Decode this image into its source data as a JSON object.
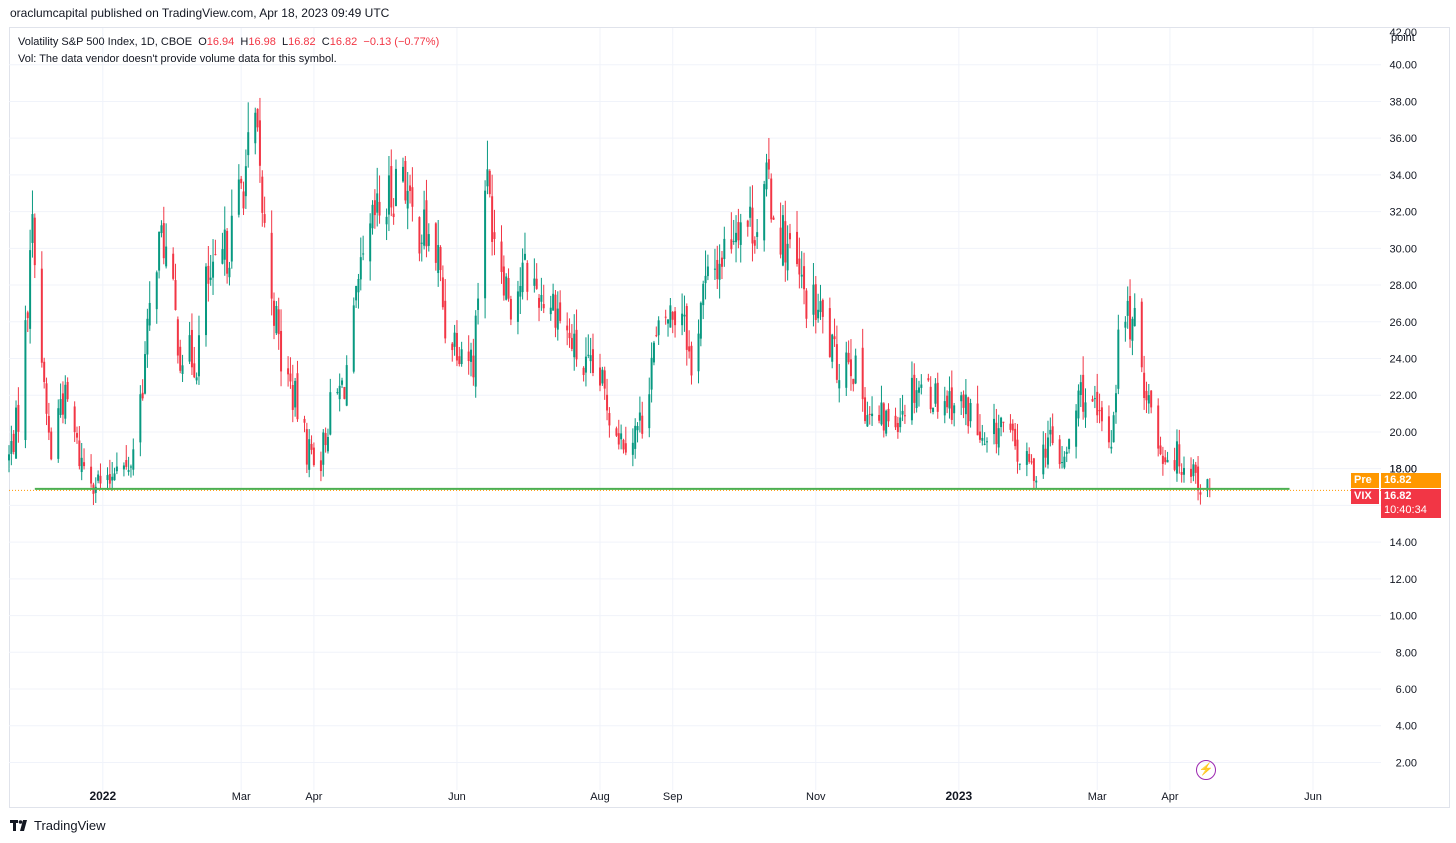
{
  "header": {
    "published": "oraclumcapital published on TradingView.com, Apr 18, 2023 09:49 UTC"
  },
  "legend": {
    "symbol": "Volatility S&P 500 Index, 1D, CBOE",
    "o_label": "O",
    "o_val": "16.94",
    "h_label": "H",
    "h_val": "16.98",
    "l_label": "L",
    "l_val": "16.82",
    "c_label": "C",
    "c_val": "16.82",
    "change": "−0.13 (−0.77%)",
    "vol_note": "Vol: The data vendor doesn't provide volume data for this symbol."
  },
  "price_scale": {
    "unit": "point"
  },
  "tags": {
    "pre_label": "Pre",
    "pre_value": "16.82",
    "vix_label": "VIX",
    "vix_value": "16.82",
    "countdown": "10:40:34",
    "partial_tick": "18.00"
  },
  "footer": {
    "brand": "TradingView"
  },
  "colors": {
    "up": "#089981",
    "down": "#f23645",
    "support": "#4caf50",
    "pre": "#ff9800",
    "last": "#f23645"
  },
  "icons": {
    "bolt": "lightning-bolt-icon",
    "logo": "tradingview-logo-icon"
  },
  "chart_data": {
    "type": "candlestick",
    "title": "Volatility S&P 500 Index, 1D, CBOE",
    "ylabel": "point",
    "ylim": [
      0.5,
      42
    ],
    "yticks": [
      2,
      4,
      6,
      8,
      10,
      12,
      14,
      16,
      18,
      20,
      22,
      24,
      26,
      28,
      30,
      32,
      34,
      36,
      38,
      40
    ],
    "x_range": [
      "2021-11-22",
      "2023-06-30"
    ],
    "x_tick_labels": [
      {
        "date": "2022-01-01",
        "label": "2022",
        "bold": true
      },
      {
        "date": "2022-03-01",
        "label": "Mar"
      },
      {
        "date": "2022-04-01",
        "label": "Apr"
      },
      {
        "date": "2022-06-01",
        "label": "Jun"
      },
      {
        "date": "2022-08-01",
        "label": "Aug"
      },
      {
        "date": "2022-09-01",
        "label": "Sep"
      },
      {
        "date": "2022-11-01",
        "label": "Nov"
      },
      {
        "date": "2023-01-01",
        "label": "2023",
        "bold": true
      },
      {
        "date": "2023-03-01",
        "label": "Mar"
      },
      {
        "date": "2023-04-01",
        "label": "Apr"
      },
      {
        "date": "2023-06-01",
        "label": "Jun"
      }
    ],
    "grid": true,
    "last_price": 16.82,
    "support_line": {
      "value": 16.9,
      "from": "2021-12-03",
      "to": "2023-05-22"
    },
    "close_path": [
      [
        "2021-11-22",
        18.6
      ],
      [
        "2021-11-26",
        20.9
      ],
      [
        "2021-11-30",
        27.0
      ],
      [
        "2021-12-01",
        31.0
      ],
      [
        "2021-12-03",
        30.5
      ],
      [
        "2021-12-07",
        21.9
      ],
      [
        "2021-12-10",
        18.7
      ],
      [
        "2021-12-14",
        21.9
      ],
      [
        "2021-12-17",
        21.5
      ],
      [
        "2021-12-22",
        18.6
      ],
      [
        "2021-12-28",
        17.5
      ],
      [
        "2022-01-03",
        16.9
      ],
      [
        "2022-01-07",
        18.8
      ],
      [
        "2022-01-12",
        17.6
      ],
      [
        "2022-01-18",
        22.8
      ],
      [
        "2022-01-24",
        29.9
      ],
      [
        "2022-01-27",
        30.5
      ],
      [
        "2022-02-03",
        24.4
      ],
      [
        "2022-02-10",
        23.9
      ],
      [
        "2022-02-14",
        28.0
      ],
      [
        "2022-02-17",
        28.1
      ],
      [
        "2022-02-24",
        30.3
      ],
      [
        "2022-03-01",
        33.3
      ],
      [
        "2022-03-07",
        36.5
      ],
      [
        "2022-03-11",
        30.8
      ],
      [
        "2022-03-18",
        23.9
      ],
      [
        "2022-03-24",
        21.7
      ],
      [
        "2022-03-29",
        19.1
      ],
      [
        "2022-04-04",
        18.6
      ],
      [
        "2022-04-08",
        21.2
      ],
      [
        "2022-04-14",
        22.7
      ],
      [
        "2022-04-21",
        28.2
      ],
      [
        "2022-04-27",
        31.6
      ],
      [
        "2022-05-02",
        32.3
      ],
      [
        "2022-05-09",
        34.8
      ],
      [
        "2022-05-12",
        31.8
      ],
      [
        "2022-05-18",
        30.9
      ],
      [
        "2022-05-24",
        29.4
      ],
      [
        "2022-05-27",
        25.7
      ],
      [
        "2022-06-03",
        24.8
      ],
      [
        "2022-06-08",
        23.9
      ],
      [
        "2022-06-10",
        27.8
      ],
      [
        "2022-06-13",
        34.0
      ],
      [
        "2022-06-17",
        31.1
      ],
      [
        "2022-06-24",
        27.2
      ],
      [
        "2022-06-30",
        28.7
      ],
      [
        "2022-07-06",
        27.6
      ],
      [
        "2022-07-13",
        27.0
      ],
      [
        "2022-07-18",
        25.3
      ],
      [
        "2022-07-25",
        23.4
      ],
      [
        "2022-08-01",
        22.8
      ],
      [
        "2022-08-05",
        21.2
      ],
      [
        "2022-08-10",
        19.7
      ],
      [
        "2022-08-15",
        19.9
      ],
      [
        "2022-08-19",
        20.6
      ],
      [
        "2022-08-23",
        24.0
      ],
      [
        "2022-08-29",
        26.2
      ],
      [
        "2022-09-06",
        26.9
      ],
      [
        "2022-09-09",
        22.8
      ],
      [
        "2022-09-13",
        27.3
      ],
      [
        "2022-09-23",
        29.9
      ],
      [
        "2022-09-29",
        31.8
      ],
      [
        "2022-10-03",
        31.4
      ],
      [
        "2022-10-07",
        31.4
      ],
      [
        "2022-10-12",
        33.6
      ],
      [
        "2022-10-14",
        32.0
      ],
      [
        "2022-10-21",
        29.7
      ],
      [
        "2022-10-27",
        27.4
      ],
      [
        "2022-11-03",
        26.3
      ],
      [
        "2022-11-10",
        23.5
      ],
      [
        "2022-11-15",
        24.5
      ],
      [
        "2022-11-18",
        23.1
      ],
      [
        "2022-11-25",
        20.5
      ],
      [
        "2022-11-30",
        20.6
      ],
      [
        "2022-12-05",
        20.8
      ],
      [
        "2022-12-13",
        22.6
      ],
      [
        "2022-12-16",
        22.6
      ],
      [
        "2022-12-22",
        22.0
      ],
      [
        "2022-12-30",
        21.7
      ],
      [
        "2023-01-06",
        21.1
      ],
      [
        "2023-01-12",
        18.8
      ],
      [
        "2023-01-19",
        20.5
      ],
      [
        "2023-01-27",
        18.5
      ],
      [
        "2023-02-02",
        17.9
      ],
      [
        "2023-02-08",
        19.6
      ],
      [
        "2023-02-15",
        18.2
      ],
      [
        "2023-02-22",
        22.3
      ],
      [
        "2023-03-01",
        20.6
      ],
      [
        "2023-03-07",
        19.6
      ],
      [
        "2023-03-10",
        24.8
      ],
      [
        "2023-03-13",
        26.5
      ],
      [
        "2023-03-17",
        25.5
      ],
      [
        "2023-03-22",
        22.3
      ],
      [
        "2023-03-28",
        19.0
      ],
      [
        "2023-04-04",
        18.6
      ],
      [
        "2023-04-11",
        18.1
      ],
      [
        "2023-04-14",
        17.1
      ],
      [
        "2023-04-18",
        16.82
      ]
    ]
  }
}
